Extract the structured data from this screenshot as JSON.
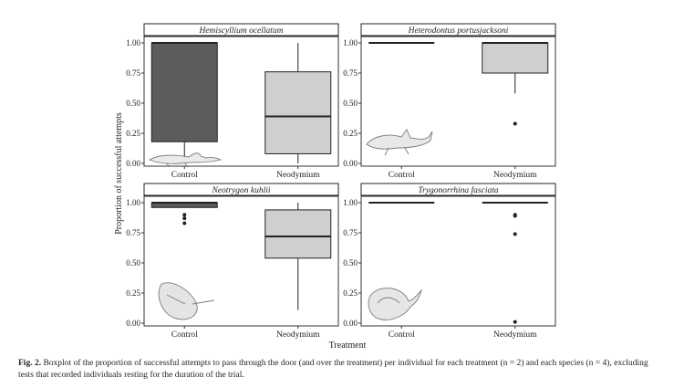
{
  "chart_data": {
    "type": "box",
    "ylabel": "Proportion of successful attempts",
    "xlabel": "Treatment",
    "categories": [
      "Control",
      "Neodymium"
    ],
    "ylim": [
      0,
      1
    ],
    "yticks": [
      "0.00",
      "0.25",
      "0.50",
      "0.75",
      "1.00"
    ],
    "panels": [
      {
        "title": "Hemiscyllium ocellatum",
        "boxes": [
          {
            "category": "Control",
            "min": 0.05,
            "q1": 0.18,
            "median": 1.0,
            "q3": 1.0,
            "max": 1.0,
            "outliers": [],
            "color": "#5c5c5c"
          },
          {
            "category": "Neodymium",
            "min": 0.0,
            "q1": 0.08,
            "median": 0.39,
            "q3": 0.76,
            "max": 1.0,
            "outliers": [],
            "color": "#cfcfcf"
          }
        ]
      },
      {
        "title": "Heterodontus portusjacksoni",
        "boxes": [
          {
            "category": "Control",
            "min": 1.0,
            "q1": 1.0,
            "median": 1.0,
            "q3": 1.0,
            "max": 1.0,
            "outliers": [],
            "color": "#5c5c5c"
          },
          {
            "category": "Neodymium",
            "min": 0.58,
            "q1": 0.75,
            "median": 1.0,
            "q3": 1.0,
            "max": 1.0,
            "outliers": [
              0.33
            ],
            "color": "#cfcfcf"
          }
        ]
      },
      {
        "title": "Neotrygon kuhlii",
        "boxes": [
          {
            "category": "Control",
            "min": 0.96,
            "q1": 0.96,
            "median": 1.0,
            "q3": 1.0,
            "max": 1.0,
            "outliers": [
              0.9,
              0.87,
              0.83
            ],
            "color": "#5c5c5c"
          },
          {
            "category": "Neodymium",
            "min": 0.11,
            "q1": 0.54,
            "median": 0.72,
            "q3": 0.94,
            "max": 1.0,
            "outliers": [],
            "color": "#cfcfcf"
          }
        ]
      },
      {
        "title": "Trygonorrhina fasciata",
        "boxes": [
          {
            "category": "Control",
            "min": 1.0,
            "q1": 1.0,
            "median": 1.0,
            "q3": 1.0,
            "max": 1.0,
            "outliers": [],
            "color": "#5c5c5c"
          },
          {
            "category": "Neodymium",
            "min": 1.0,
            "q1": 1.0,
            "median": 1.0,
            "q3": 1.0,
            "max": 1.0,
            "outliers": [
              0.9,
              0.89,
              0.74,
              0.01
            ],
            "color": "#cfcfcf"
          }
        ]
      }
    ]
  },
  "caption": {
    "label": "Fig. 2.",
    "text": "Boxplot of the proportion of successful attempts to pass through the door (and over the treatment) per individual for each treatment (n = 2) and each species (n = 4), excluding tests that recorded individuals resting for the duration of the trial."
  }
}
